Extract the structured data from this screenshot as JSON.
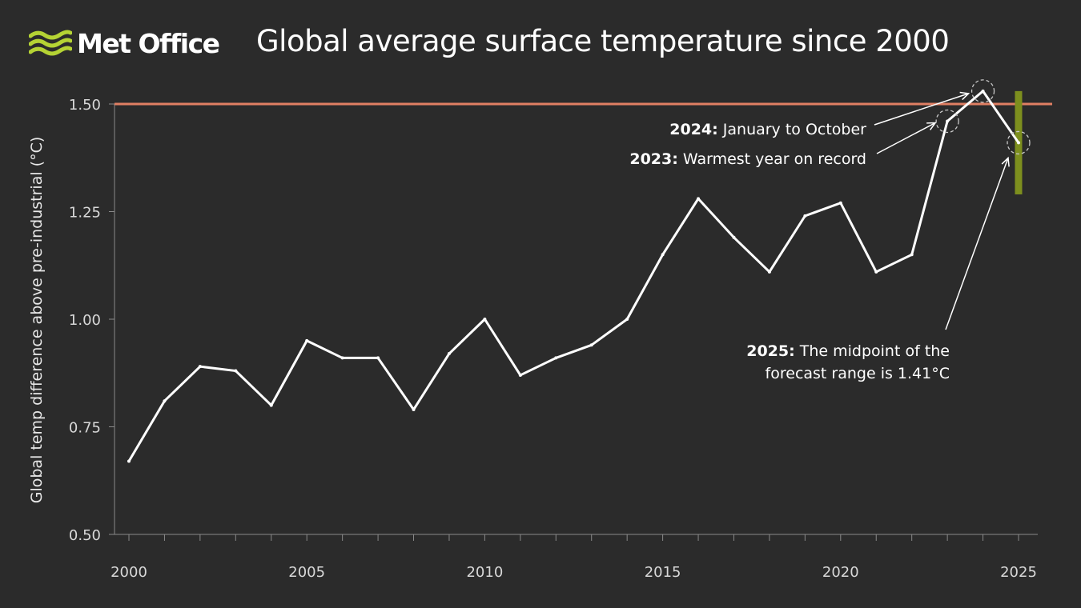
{
  "brand": {
    "name": "Met Office"
  },
  "colors": {
    "background": "#2b2b2b",
    "line": "#ffffff",
    "threshold": "#e07f63",
    "forecast_range": "#7d8f1e",
    "logo_waves": "#b5d334"
  },
  "chart_data": {
    "type": "line",
    "title": "Global average surface temperature since 2000",
    "ylabel": "Global temp difference above pre-industrial (°C)",
    "xlabel": "",
    "xlim": [
      2000,
      2025
    ],
    "ylim": [
      0.5,
      1.5
    ],
    "x_ticks": [
      2000,
      2005,
      2010,
      2015,
      2020,
      2025
    ],
    "y_ticks": [
      "0.50",
      "0.75",
      "1.00",
      "1.25",
      "1.50"
    ],
    "grid": false,
    "threshold": 1.5,
    "x": [
      2000,
      2001,
      2002,
      2003,
      2004,
      2005,
      2006,
      2007,
      2008,
      2009,
      2010,
      2011,
      2012,
      2013,
      2014,
      2015,
      2016,
      2017,
      2018,
      2019,
      2020,
      2021,
      2022,
      2023,
      2024,
      2025
    ],
    "values": [
      0.67,
      0.81,
      0.89,
      0.88,
      0.8,
      0.95,
      0.91,
      0.91,
      0.79,
      0.92,
      1.0,
      0.87,
      0.91,
      0.94,
      1.0,
      1.15,
      1.28,
      1.19,
      1.11,
      1.24,
      1.27,
      1.11,
      1.15,
      1.46,
      1.53,
      1.41
    ],
    "forecast_range": {
      "x": 2025,
      "low": 1.29,
      "high": 1.53
    },
    "annotations": [
      {
        "year": 2024,
        "value": 1.53,
        "bold": "2024:",
        "lines": [
          " January to October"
        ]
      },
      {
        "year": 2023,
        "value": 1.46,
        "bold": "2023:",
        "lines": [
          " Warmest year on record"
        ]
      },
      {
        "year": 2025,
        "value": 1.41,
        "bold": "2025:",
        "lines": [
          " The midpoint of the",
          "forecast range is 1.41°C"
        ]
      }
    ]
  }
}
